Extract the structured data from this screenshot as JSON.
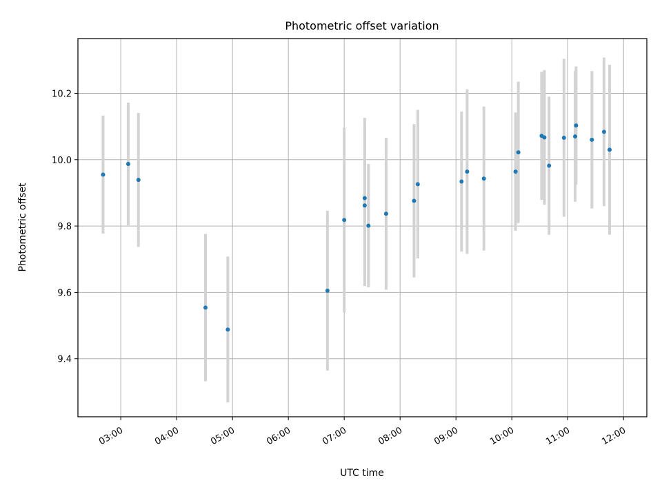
{
  "chart_data": {
    "type": "scatter",
    "title": "Photometric offset variation",
    "xlabel": "UTC time",
    "ylabel": "Photometric offset",
    "x_tick_labels": [
      "03:00",
      "04:00",
      "05:00",
      "06:00",
      "07:00",
      "08:00",
      "09:00",
      "10:00",
      "11:00",
      "12:00"
    ],
    "y_tick_labels": [
      "9.4",
      "9.6",
      "9.8",
      "10.0",
      "10.2"
    ],
    "y_ticks": [
      9.4,
      9.6,
      9.8,
      10.0,
      10.2
    ],
    "xlim": [
      "02:14",
      "12:25"
    ],
    "ylim": [
      9.225,
      10.365
    ],
    "grid": true,
    "colors": {
      "points": "#1f77b4",
      "errorbars": "#d3d3d3",
      "grid": "#b0b0b0"
    },
    "points": [
      {
        "x": "02:41",
        "y": 9.955,
        "err": 0.178
      },
      {
        "x": "03:08",
        "y": 9.987,
        "err": 0.185
      },
      {
        "x": "03:19",
        "y": 9.939,
        "err": 0.202
      },
      {
        "x": "04:31",
        "y": 9.554,
        "err": 0.222
      },
      {
        "x": "04:55",
        "y": 9.488,
        "err": 0.22
      },
      {
        "x": "06:42",
        "y": 9.605,
        "err": 0.241
      },
      {
        "x": "07:00",
        "y": 9.818,
        "err": 0.279
      },
      {
        "x": "07:22",
        "y": 9.884,
        "err": 0.242
      },
      {
        "x": "07:22",
        "y": 9.862,
        "err": 0.243
      },
      {
        "x": "07:26",
        "y": 9.801,
        "err": 0.186
      },
      {
        "x": "07:45",
        "y": 9.837,
        "err": 0.229
      },
      {
        "x": "08:15",
        "y": 9.876,
        "err": 0.231
      },
      {
        "x": "08:19",
        "y": 9.926,
        "err": 0.224
      },
      {
        "x": "09:06",
        "y": 9.934,
        "err": 0.211
      },
      {
        "x": "09:12",
        "y": 9.964,
        "err": 0.248
      },
      {
        "x": "09:30",
        "y": 9.943,
        "err": 0.217
      },
      {
        "x": "10:04",
        "y": 9.964,
        "err": 0.178
      },
      {
        "x": "10:07",
        "y": 10.022,
        "err": 0.213
      },
      {
        "x": "10:32",
        "y": 10.072,
        "err": 0.193
      },
      {
        "x": "10:35",
        "y": 10.067,
        "err": 0.203
      },
      {
        "x": "10:40",
        "y": 9.982,
        "err": 0.208
      },
      {
        "x": "10:56",
        "y": 10.066,
        "err": 0.238
      },
      {
        "x": "11:08",
        "y": 10.07,
        "err": 0.197
      },
      {
        "x": "11:09",
        "y": 10.103,
        "err": 0.178
      },
      {
        "x": "11:26",
        "y": 10.06,
        "err": 0.207
      },
      {
        "x": "11:39",
        "y": 10.084,
        "err": 0.224
      },
      {
        "x": "11:45",
        "y": 10.03,
        "err": 0.256
      }
    ]
  }
}
